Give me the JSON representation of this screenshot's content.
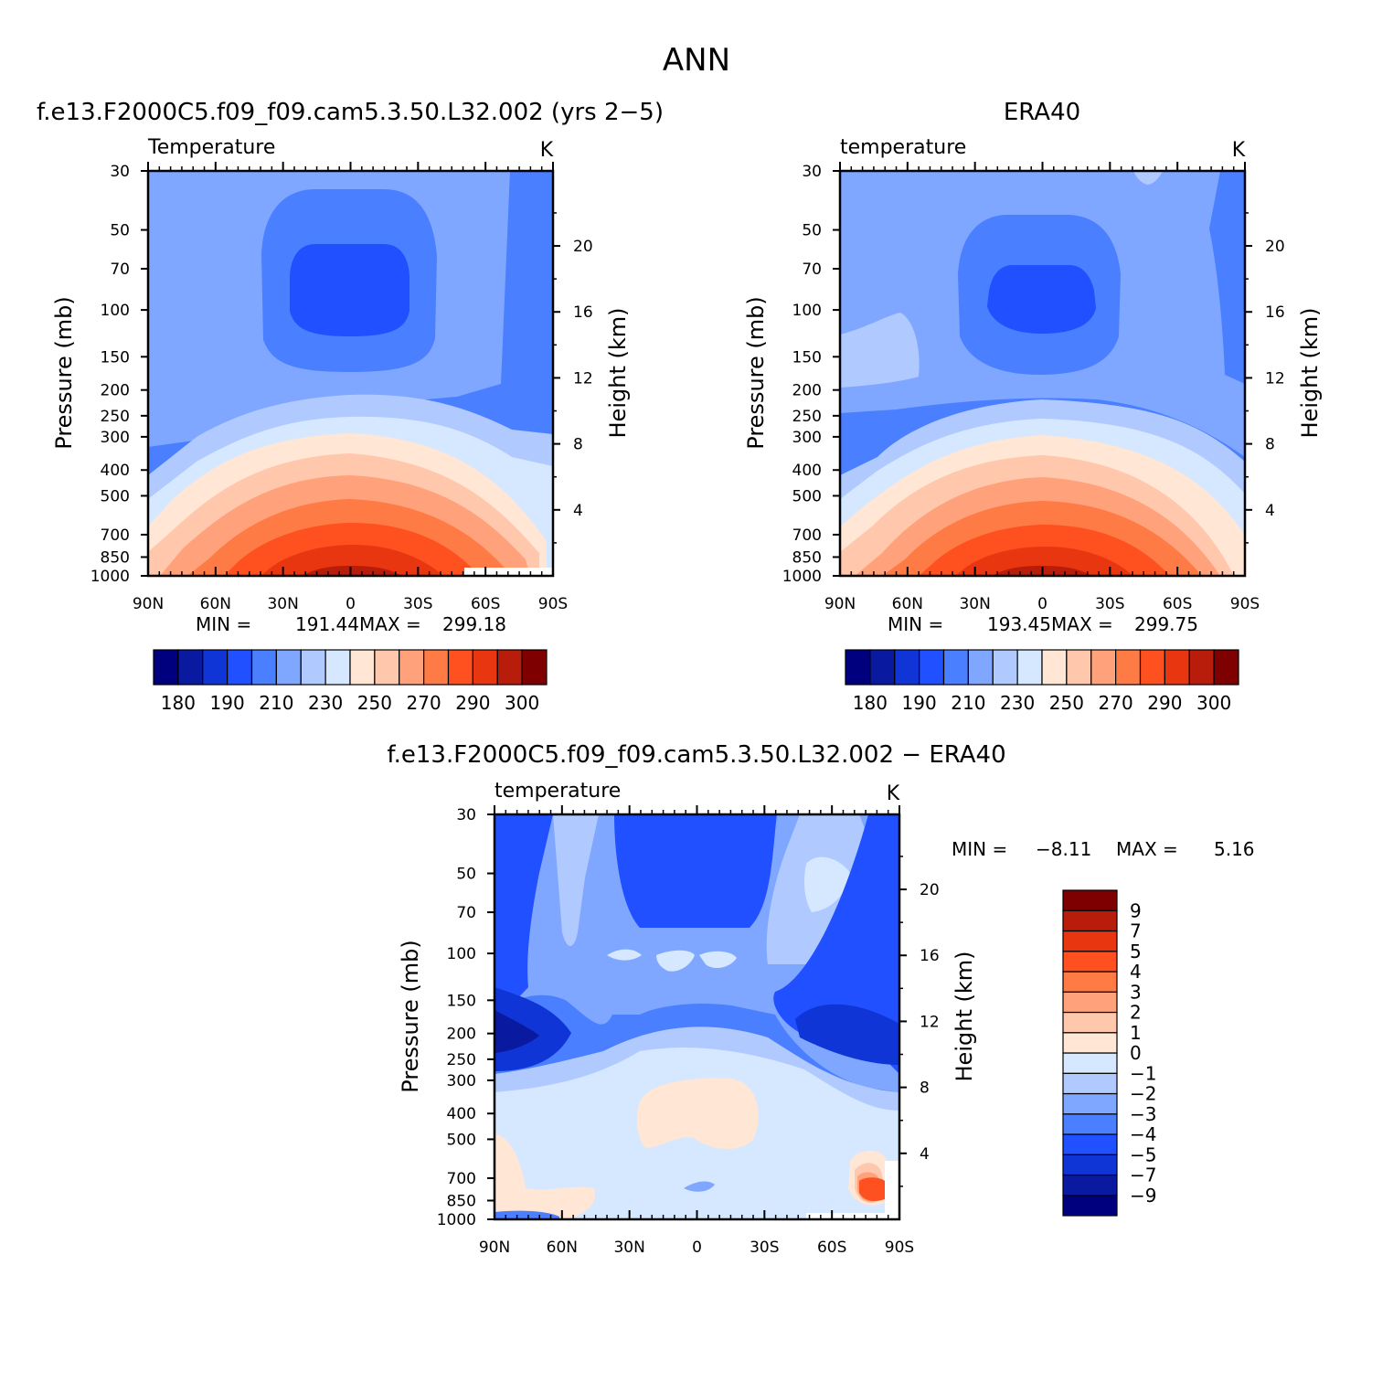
{
  "figure": {
    "title": "ANN",
    "diff_title": "f.e13.F2000C5.f09_f09.cam5.3.50.L32.002  −  ERA40"
  },
  "palette": {
    "temp_colors": [
      "#00007f",
      "#0a1aa0",
      "#0f35d6",
      "#2050ff",
      "#4a7fff",
      "#80a7ff",
      "#b0caff",
      "#d6e8ff",
      "#ffe6d5",
      "#ffc8ad",
      "#ffa27c",
      "#ff7b45",
      "#ff5020",
      "#e83610",
      "#b81c0a",
      "#7f0000"
    ],
    "diff_colors": [
      "#00007f",
      "#0a1aa0",
      "#0f35d6",
      "#2050ff",
      "#4a7fff",
      "#80a7ff",
      "#b0caff",
      "#d6e8ff",
      "#ffe6d5",
      "#ffc8ad",
      "#ffa27c",
      "#ff7b45",
      "#ff5020",
      "#e83610",
      "#b81c0a",
      "#7f0000"
    ]
  },
  "chart_data": [
    {
      "type": "contour",
      "panel": "model",
      "title": "f.e13.F2000C5.f09_f09.cam5.3.50.L32.002 (yrs 2−5)",
      "left_label": "Temperature",
      "units": "K",
      "xlabel": "",
      "ylabel": "Pressure (mb)",
      "ylabel_right": "Height (km)",
      "x_ticks": [
        "90N",
        "60N",
        "30N",
        "0",
        "30S",
        "60S",
        "90S"
      ],
      "x_values": [
        90,
        60,
        30,
        0,
        -30,
        -60,
        -90
      ],
      "y_ticks": [
        30,
        50,
        70,
        100,
        150,
        200,
        250,
        300,
        400,
        500,
        700,
        850,
        1000
      ],
      "y_right_ticks": [
        20,
        16,
        12,
        8,
        4
      ],
      "y_range_mb": [
        1000,
        30
      ],
      "log_scale_y": true,
      "stats": {
        "min_label": "MIN =",
        "min": "191.44",
        "max_label": "MAX =",
        "max": "299.18"
      },
      "colorbar": {
        "orientation": "horizontal",
        "labels": [
          "180",
          "190",
          "210",
          "230",
          "250",
          "270",
          "290",
          "300"
        ]
      },
      "contour_field": [
        {
          "level": "210-220",
          "shape": "broad stratospheric and polar layer above ~250 mb"
        },
        {
          "level": "200-210",
          "shape": "equatorial tropopause dome 55N-30S, 40-150 mb; SH polar stratosphere"
        },
        {
          "level": "190-200",
          "shape": "equatorial tropopause core 40N-15S, 65-130 mb"
        },
        {
          "level": "220-280",
          "shape": "upper tropospheric bands descending poleward"
        },
        {
          "level": "280-300",
          "shape": "tropical surface core 40N-45S below 700 mb"
        }
      ]
    },
    {
      "type": "contour",
      "panel": "obs",
      "title": "ERA40",
      "left_label": "temperature",
      "units": "K",
      "xlabel": "",
      "ylabel": "Pressure (mb)",
      "ylabel_right": "Height (km)",
      "x_ticks": [
        "90N",
        "60N",
        "30N",
        "0",
        "30S",
        "60S",
        "90S"
      ],
      "x_values": [
        90,
        60,
        30,
        0,
        -30,
        -60,
        -90
      ],
      "y_ticks": [
        30,
        50,
        70,
        100,
        150,
        200,
        250,
        300,
        400,
        500,
        700,
        850,
        1000
      ],
      "y_right_ticks": [
        20,
        16,
        12,
        8,
        4
      ],
      "y_range_mb": [
        1000,
        30
      ],
      "log_scale_y": true,
      "stats": {
        "min_label": "MIN =",
        "min": "193.45",
        "max_label": "MAX =",
        "max": "299.75"
      },
      "colorbar": {
        "orientation": "horizontal",
        "labels": [
          "180",
          "190",
          "210",
          "230",
          "250",
          "270",
          "290",
          "300"
        ]
      },
      "contour_field": [
        {
          "level": "210-220",
          "shape": "broad stratospheric layer"
        },
        {
          "level": "220-230",
          "shape": "NH polar lower stratosphere 90N-70N, 100-200 mb"
        },
        {
          "level": "200-210",
          "shape": "equatorial tropopause dome 45N-40S, 50-170 mb"
        },
        {
          "level": "190-200",
          "shape": "equatorial tropopause core 30N-25S, 70-120 mb"
        },
        {
          "level": "280-300",
          "shape": "tropical surface core below 700 mb"
        }
      ]
    },
    {
      "type": "contour",
      "panel": "difference",
      "title": "f.e13.F2000C5.f09_f09.cam5.3.50.L32.002  −  ERA40",
      "left_label": "temperature",
      "units": "K",
      "xlabel": "",
      "ylabel": "Pressure (mb)",
      "ylabel_right": "Height (km)",
      "x_ticks": [
        "90N",
        "60N",
        "30N",
        "0",
        "30S",
        "60S",
        "90S"
      ],
      "x_values": [
        90,
        60,
        30,
        0,
        -30,
        -60,
        -90
      ],
      "y_ticks": [
        30,
        50,
        70,
        100,
        150,
        200,
        250,
        300,
        400,
        500,
        700,
        850,
        1000
      ],
      "y_right_ticks": [
        20,
        16,
        12,
        8,
        4
      ],
      "y_range_mb": [
        1000,
        30
      ],
      "log_scale_y": true,
      "stats": {
        "min_label": "MIN =",
        "min": "−8.11",
        "max_label": "MAX =",
        "max": "5.16"
      },
      "colorbar": {
        "orientation": "vertical",
        "labels": [
          "9",
          "7",
          "5",
          "4",
          "3",
          "2",
          "1",
          "0",
          "−1",
          "−2",
          "−3",
          "−4",
          "−5",
          "−7",
          "−9"
        ]
      },
      "contour_field": [
        {
          "level": "-3 to -2",
          "shape": "background stratosphere"
        },
        {
          "level": "-5 to -4",
          "shape": "equatorial stratosphere 45N-40S above 80 mb"
        },
        {
          "level": "-7 to -5",
          "shape": "polar tropopause minima near 200 mb at both poles"
        },
        {
          "level": "-1 to 0",
          "shape": "troposphere below 300 mb"
        },
        {
          "level": "0 to 1",
          "shape": "mid-troposphere 30N-45S near 400 mb and NH polar surface"
        },
        {
          "level": "3 to 5",
          "shape": "SH polar surface maximum near 80S, 700-850 mb"
        }
      ]
    }
  ]
}
